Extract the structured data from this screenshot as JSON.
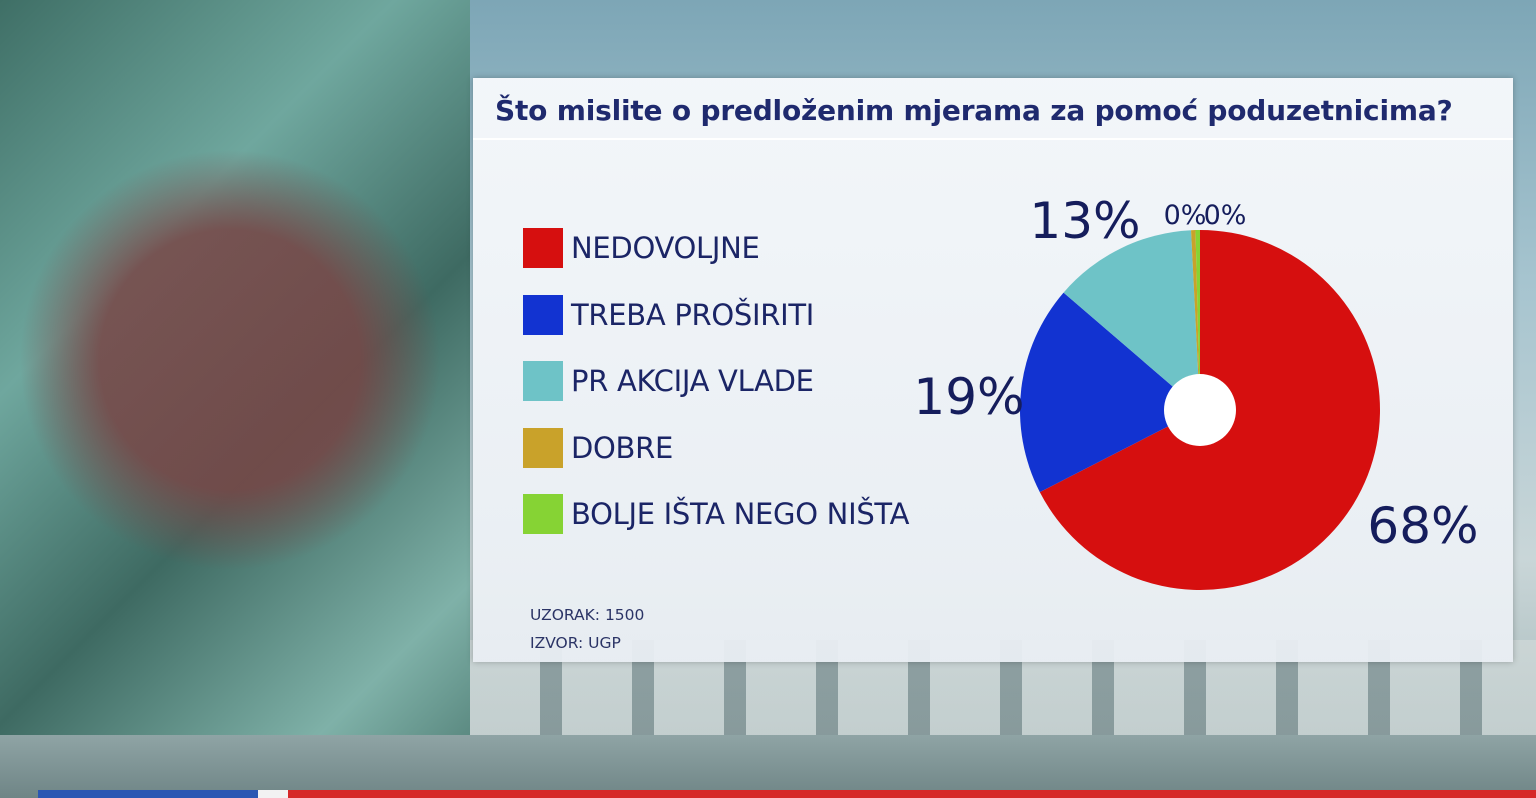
{
  "chart_data": {
    "type": "pie",
    "title": "Što mislite o predloženim mjerama za pomoć poduzetnicima?",
    "categories": [
      "NEDOVOLJNE",
      "TREBA PROŠIRITI",
      "PR AKCIJA VLADE",
      "DOBRE",
      "BOLJE IŠTA NEGO NIŠTA"
    ],
    "values": [
      68,
      19,
      13,
      0,
      0
    ],
    "value_labels": [
      "68%",
      "19%",
      "13%",
      "0%",
      "0%"
    ],
    "colors": [
      "#d60f0f",
      "#1233d1",
      "#6ec3c7",
      "#c9a22a",
      "#86d334"
    ],
    "legend_position": "left",
    "donut_hole": true
  },
  "footer": {
    "sample": "UZORAK: 1500",
    "source": "IZVOR: UGP"
  }
}
